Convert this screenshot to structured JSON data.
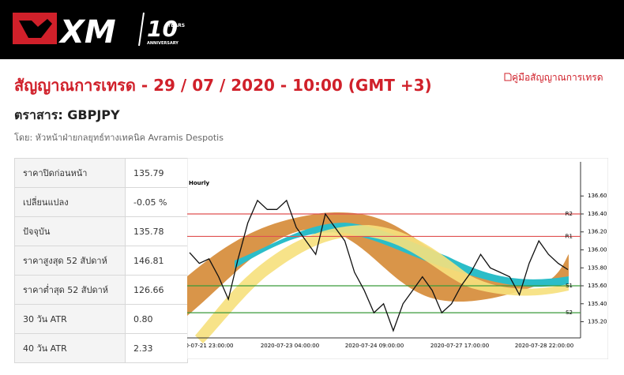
{
  "header": {
    "logo": "XM",
    "logo_number": "10",
    "logo_years": "YEARS",
    "logo_anniversary": "ANNIVERSARY"
  },
  "title": "สัญญาณการเทรด - 29 / 07 / 2020 - 10:00 (GMT +3)",
  "guide_link": "คู่มือสัญญาณการเทรด",
  "instrument": "ตราสาร: GBPJPY",
  "author": "โดย: หัวหน้าฝ่ายกลยุทธ์ทางเทคนิค Avramis Despotis",
  "table": {
    "rows": [
      [
        "ราคาปิดก่อนหน้า",
        "135.79"
      ],
      [
        "เปลี่ยนแปลง",
        "-0.05 %"
      ],
      [
        "ปัจจุบัน",
        "135.78"
      ],
      [
        "ราคาสูงสุด 52 สัปดาห์",
        "146.81"
      ],
      [
        "ราคาต่ำสุด 52 สัปดาห์",
        "126.66"
      ],
      [
        "30 วัน ATR",
        "0.80"
      ],
      [
        "40 วัน ATR",
        "2.33"
      ]
    ]
  },
  "chart": {
    "timeframe": "Hourly",
    "ylim": [
      135.02,
      136.98
    ],
    "yticks": [
      {
        "value": 136.6,
        "label": "136.60"
      },
      {
        "value": 136.4,
        "label": "136.40"
      },
      {
        "value": 136.2,
        "label": "136.20"
      },
      {
        "value": 136.0,
        "label": "136.00"
      },
      {
        "value": 135.8,
        "label": "135.80"
      },
      {
        "value": 135.6,
        "label": "135.60"
      },
      {
        "value": 135.4,
        "label": "135.40"
      },
      {
        "value": 135.2,
        "label": "135.20"
      }
    ],
    "levels": [
      {
        "label": "R2",
        "value": 136.4,
        "color": "#e05050"
      },
      {
        "label": "R1",
        "value": 136.15,
        "color": "#e05050"
      },
      {
        "label": "S1",
        "value": 135.6,
        "color": "#3a9a3a"
      },
      {
        "label": "S2",
        "value": 135.3,
        "color": "#3a9a3a"
      }
    ],
    "x_labels": [
      "0-07-21 23:00:00",
      "2020-07-23 04:00:00",
      "2020-07-24 09:00:00",
      "2020-07-27 17:00:00",
      "2020-07-28 22:00:00"
    ],
    "price": [
      135.97,
      135.85,
      135.9,
      135.7,
      135.45,
      135.9,
      136.3,
      136.55,
      136.45,
      136.45,
      136.55,
      136.25,
      136.1,
      135.95,
      136.4,
      136.25,
      136.1,
      135.75,
      135.55,
      135.3,
      135.4,
      135.1,
      135.4,
      135.55,
      135.7,
      135.55,
      135.3,
      135.4,
      135.6,
      135.75,
      135.95,
      135.8,
      135.75,
      135.7,
      135.5,
      135.85,
      136.1,
      135.95,
      135.85,
      135.78
    ]
  }
}
